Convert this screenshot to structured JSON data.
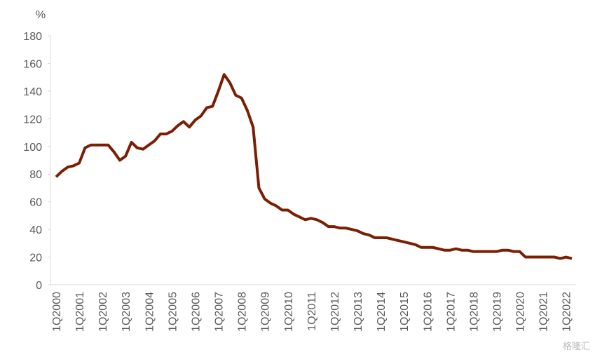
{
  "chart_data": {
    "type": "line",
    "y_label": "%",
    "watermark": "格隆汇",
    "categories": [
      "1Q2000",
      null,
      null,
      null,
      "1Q2001",
      null,
      null,
      null,
      "1Q2002",
      null,
      null,
      null,
      "1Q2003",
      null,
      null,
      null,
      "1Q2004",
      null,
      null,
      null,
      "1Q2005",
      null,
      null,
      null,
      "1Q2006",
      null,
      null,
      null,
      "1Q2007",
      null,
      null,
      null,
      "1Q2008",
      null,
      null,
      null,
      "1Q2009",
      null,
      null,
      null,
      "1Q2010",
      null,
      null,
      null,
      "1Q2011",
      null,
      null,
      null,
      "1Q2012",
      null,
      null,
      null,
      "1Q2013",
      null,
      null,
      null,
      "1Q2014",
      null,
      null,
      null,
      "1Q2015",
      null,
      null,
      null,
      "1Q2016",
      null,
      null,
      null,
      "1Q2017",
      null,
      null,
      null,
      "1Q2018",
      null,
      null,
      null,
      "1Q2019",
      null,
      null,
      null,
      "1Q2020",
      null,
      null,
      null,
      "1Q2021",
      null,
      null,
      null,
      "1Q2022",
      null
    ],
    "series": [
      {
        "color": "#7a1f04",
        "values": [
          78,
          82,
          85,
          86,
          88,
          99,
          101,
          101,
          101,
          101,
          96,
          90,
          93,
          103,
          99,
          98,
          101,
          104,
          109,
          109,
          111,
          115,
          118,
          114,
          119,
          122,
          128,
          129,
          140,
          152,
          146,
          137,
          135,
          126,
          114,
          70,
          62,
          59,
          57,
          54,
          54,
          51,
          49,
          47,
          48,
          47,
          45,
          42,
          42,
          41,
          41,
          40,
          39,
          37,
          36,
          34,
          34,
          34,
          33,
          32,
          31,
          30,
          29,
          27,
          27,
          27,
          26,
          25,
          25,
          26,
          25,
          25,
          24,
          24,
          24,
          24,
          24,
          25,
          25,
          24,
          24,
          20,
          20,
          20,
          20,
          20,
          20,
          19,
          20,
          19
        ]
      }
    ],
    "ylim": [
      0,
      180
    ],
    "yticks": [
      0,
      20,
      40,
      60,
      80,
      100,
      120,
      140,
      160,
      180
    ],
    "grid": false
  }
}
